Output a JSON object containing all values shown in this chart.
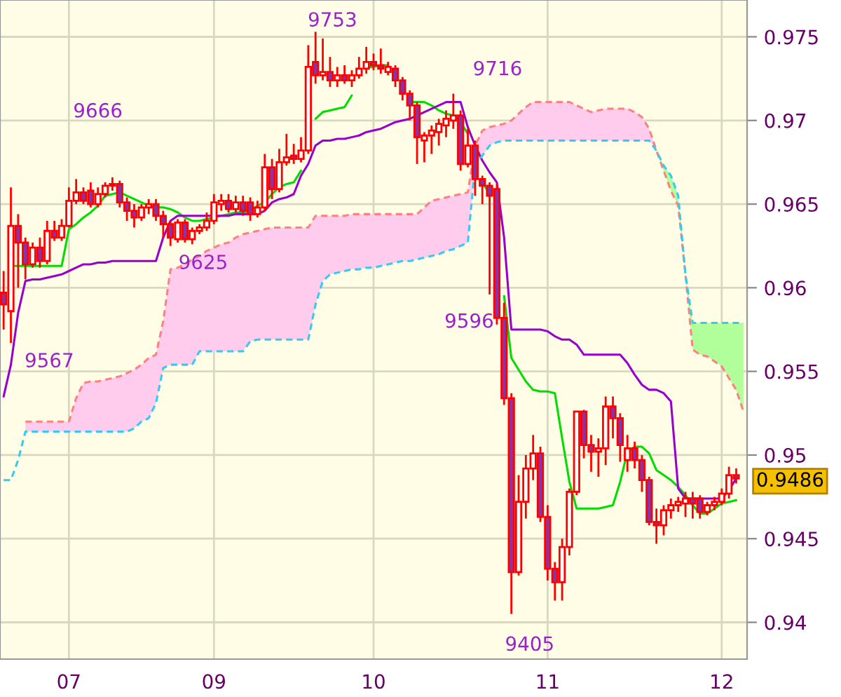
{
  "chart_data": {
    "type": "candlestick",
    "categories": [
      null,
      null,
      null,
      null,
      null,
      null,
      null,
      null,
      null,
      "07",
      null,
      null,
      null,
      null,
      null,
      null,
      null,
      null,
      null,
      null,
      null,
      null,
      null,
      null,
      null,
      null,
      null,
      null,
      null,
      "09",
      null,
      null,
      null,
      null,
      null,
      null,
      null,
      null,
      null,
      null,
      null,
      null,
      null,
      null,
      null,
      null,
      null,
      null,
      null,
      null,
      null,
      "10",
      null,
      null,
      null,
      null,
      null,
      null,
      null,
      null,
      null,
      null,
      null,
      null,
      null,
      null,
      null,
      null,
      null,
      null,
      null,
      null,
      null,
      null,
      null,
      "11",
      null,
      null,
      null,
      null,
      null,
      null,
      null,
      null,
      null,
      null,
      null,
      null,
      null,
      null,
      null,
      null,
      null,
      null,
      null,
      null,
      null,
      null,
      null,
      "12",
      null,
      null,
      null
    ],
    "ylim": [
      0.9378,
      0.9772
    ],
    "yticks": [
      0.94,
      0.945,
      0.95,
      0.955,
      0.96,
      0.965,
      0.97,
      0.975
    ],
    "grid": true,
    "annotations": [
      "9753",
      "9716",
      "9666",
      "9625",
      "9567",
      "9596",
      "9405",
      "0.9486"
    ],
    "series": [
      {
        "color": "#ff0000",
        "colors": [
          "#8833aa",
          "#ffffff",
          "#8833aa",
          "#8833aa",
          "#ffffff",
          "#8833aa",
          "#ffffff",
          "#8833aa",
          "#ffffff",
          "#ffffff",
          "#ffffff",
          "#8833aa",
          "#8833aa",
          "#ffffff",
          "#ffffff",
          "#ffffff",
          "#8833aa",
          "#8833aa",
          "#8833aa",
          "#ffffff",
          "#ffffff",
          "#8833aa",
          "#8833aa",
          "#8833aa",
          "#ffffff",
          "#8833aa",
          "#ffffff",
          "#ffffff",
          "#ffffff",
          "#ffffff",
          "#ffffff",
          "#8833aa",
          "#ffffff",
          "#8833aa",
          "#8833aa",
          "#ffffff",
          "#ffffff",
          "#8833aa",
          "#ffffff",
          "#ffffff",
          "#8833aa",
          "#ffffff",
          "#ffffff",
          "#8833aa",
          "#ffffff",
          "#8833aa",
          "#ffffff",
          "#8833aa",
          "#ffffff",
          "#ffffff",
          "#ffffff",
          "#8833aa",
          "#8833aa",
          "#ffffff",
          "#8833aa",
          "#8833aa",
          "#8833aa",
          "#8833aa",
          "#ffffff",
          "#ffffff",
          "#ffffff",
          "#ffffff",
          "#ffffff",
          "#8833aa",
          "#ffffff",
          "#8833aa",
          "#8833aa",
          "#8833aa",
          "#8833aa",
          "#8833aa",
          "#8833aa",
          "#ffffff",
          "#ffffff",
          "#ffffff",
          "#8833aa",
          "#8833aa",
          "#8833aa",
          "#ffffff",
          "#ffffff",
          "#ffffff",
          "#8833aa",
          "#8833aa",
          "#ffffff",
          "#ffffff",
          "#8833aa",
          "#8833aa",
          "#ffffff",
          "#8833aa",
          "#8833aa",
          "#8833aa",
          "#8833aa",
          "#ffffff",
          "#ffffff",
          "#ffffff",
          "#ffffff",
          "#8833aa",
          "#8833aa",
          "#ffffff",
          "#ffffff",
          "#ffffff",
          "#ffffff",
          "#8833aa",
          null
        ],
        "ohlc": [
          [
            0.9597,
            0.961,
            0.9575,
            0.959
          ],
          [
            0.9586,
            0.966,
            0.9567,
            0.9637
          ],
          [
            0.9637,
            0.9644,
            0.96,
            0.9627
          ],
          [
            0.9627,
            0.963,
            0.9605,
            0.9614
          ],
          [
            0.9614,
            0.9627,
            0.9612,
            0.9624
          ],
          [
            0.9624,
            0.963,
            0.9612,
            0.9616
          ],
          [
            0.9616,
            0.964,
            0.9614,
            0.9634
          ],
          [
            0.9634,
            0.964,
            0.9628,
            0.963
          ],
          [
            0.963,
            0.9641,
            0.9628,
            0.9637
          ],
          [
            0.9637,
            0.966,
            0.9636,
            0.9652
          ],
          [
            0.9652,
            0.9665,
            0.965,
            0.9657
          ],
          [
            0.9657,
            0.966,
            0.965,
            0.9652
          ],
          [
            0.9658,
            0.9663,
            0.9648,
            0.965
          ],
          [
            0.965,
            0.966,
            0.9648,
            0.9656
          ],
          [
            0.9656,
            0.9663,
            0.9654,
            0.9661
          ],
          [
            0.9661,
            0.9666,
            0.9658,
            0.9662
          ],
          [
            0.9662,
            0.9664,
            0.9648,
            0.9651
          ],
          [
            0.9651,
            0.9654,
            0.964,
            0.9646
          ],
          [
            0.9646,
            0.965,
            0.9636,
            0.9642
          ],
          [
            0.9642,
            0.965,
            0.964,
            0.9648
          ],
          [
            0.9648,
            0.9653,
            0.9644,
            0.965
          ],
          [
            0.965,
            0.9653,
            0.964,
            0.9643
          ],
          [
            0.9643,
            0.9646,
            0.963,
            0.9638
          ],
          [
            0.9638,
            0.964,
            0.9625,
            0.963
          ],
          [
            0.9629,
            0.9641,
            0.9627,
            0.9639
          ],
          [
            0.9639,
            0.9641,
            0.9627,
            0.9629
          ],
          [
            0.9629,
            0.9636,
            0.9626,
            0.9634
          ],
          [
            0.9634,
            0.9638,
            0.9632,
            0.9636
          ],
          [
            0.9636,
            0.9645,
            0.9634,
            0.964
          ],
          [
            0.964,
            0.9656,
            0.9638,
            0.9651
          ],
          [
            0.965,
            0.9656,
            0.9646,
            0.9652
          ],
          [
            0.9652,
            0.9656,
            0.9645,
            0.9647
          ],
          [
            0.9647,
            0.9655,
            0.9645,
            0.9651
          ],
          [
            0.9651,
            0.9655,
            0.9643,
            0.9646
          ],
          [
            0.9651,
            0.9654,
            0.964,
            0.9644
          ],
          [
            0.9644,
            0.9652,
            0.9642,
            0.9648
          ],
          [
            0.9648,
            0.968,
            0.9646,
            0.9672
          ],
          [
            0.9672,
            0.9677,
            0.9653,
            0.9659
          ],
          [
            0.9659,
            0.9683,
            0.9657,
            0.9675
          ],
          [
            0.9675,
            0.9692,
            0.9673,
            0.9678
          ],
          [
            0.9679,
            0.9686,
            0.9674,
            0.9677
          ],
          [
            0.9677,
            0.969,
            0.9675,
            0.9682
          ],
          [
            0.9682,
            0.9745,
            0.968,
            0.9732
          ],
          [
            0.9735,
            0.9753,
            0.9722,
            0.9727
          ],
          [
            0.9727,
            0.9749,
            0.9724,
            0.9729
          ],
          [
            0.9729,
            0.9738,
            0.972,
            0.9724
          ],
          [
            0.9724,
            0.9732,
            0.972,
            0.9727
          ],
          [
            0.9727,
            0.9733,
            0.9722,
            0.9724
          ],
          [
            0.9724,
            0.973,
            0.972,
            0.9727
          ],
          [
            0.9727,
            0.9738,
            0.9725,
            0.9731
          ],
          [
            0.9731,
            0.9744,
            0.9728,
            0.9735
          ],
          [
            0.9735,
            0.974,
            0.973,
            0.9733
          ],
          [
            0.9733,
            0.9743,
            0.9728,
            0.9731
          ],
          [
            0.9729,
            0.9735,
            0.9727,
            0.9732
          ],
          [
            0.9731,
            0.9733,
            0.972,
            0.9724
          ],
          [
            0.9724,
            0.9726,
            0.9712,
            0.9716
          ],
          [
            0.9716,
            0.9718,
            0.97,
            0.9709
          ],
          [
            0.9709,
            0.9711,
            0.9674,
            0.969
          ],
          [
            0.9688,
            0.9693,
            0.9675,
            0.9691
          ],
          [
            0.9691,
            0.9697,
            0.968,
            0.9694
          ],
          [
            0.9693,
            0.9701,
            0.9685,
            0.9698
          ],
          [
            0.9697,
            0.9706,
            0.969,
            0.9701
          ],
          [
            0.97,
            0.9716,
            0.9695,
            0.9703
          ],
          [
            0.9703,
            0.9706,
            0.967,
            0.9674
          ],
          [
            0.9674,
            0.9695,
            0.9672,
            0.9685
          ],
          [
            0.9685,
            0.9688,
            0.9655,
            0.9665
          ],
          [
            0.9665,
            0.9667,
            0.965,
            0.9661
          ],
          [
            0.9661,
            0.9663,
            0.9596,
            0.9655
          ],
          [
            0.9659,
            0.9662,
            0.9578,
            0.9582
          ],
          [
            0.9582,
            0.9591,
            0.953,
            0.9534
          ],
          [
            0.9534,
            0.9537,
            0.9405,
            0.943
          ],
          [
            0.943,
            0.9488,
            0.9428,
            0.9472
          ],
          [
            0.9472,
            0.95,
            0.9462,
            0.9492
          ],
          [
            0.9492,
            0.9512,
            0.9485,
            0.9501
          ],
          [
            0.9501,
            0.9505,
            0.946,
            0.9463
          ],
          [
            0.9463,
            0.947,
            0.9425,
            0.9432
          ],
          [
            0.9432,
            0.9436,
            0.9413,
            0.9424
          ],
          [
            0.9424,
            0.945,
            0.9413,
            0.9445
          ],
          [
            0.9445,
            0.948,
            0.944,
            0.9478
          ],
          [
            0.9478,
            0.9526,
            0.9476,
            0.9526
          ],
          [
            0.9526,
            0.9527,
            0.9498,
            0.9506
          ],
          [
            0.9506,
            0.9512,
            0.949,
            0.9502
          ],
          [
            0.9502,
            0.951,
            0.9487,
            0.9504
          ],
          [
            0.9504,
            0.9535,
            0.9494,
            0.9529
          ],
          [
            0.9529,
            0.9535,
            0.951,
            0.9522
          ],
          [
            0.9522,
            0.9525,
            0.9496,
            0.9506
          ],
          [
            0.9497,
            0.9512,
            0.949,
            0.9504
          ],
          [
            0.9504,
            0.9508,
            0.9492,
            0.9497
          ],
          [
            0.9497,
            0.95,
            0.9478,
            0.9485
          ],
          [
            0.9485,
            0.9487,
            0.9458,
            0.946
          ],
          [
            0.946,
            0.9468,
            0.9447,
            0.9458
          ],
          [
            0.9458,
            0.947,
            0.9452,
            0.9467
          ],
          [
            0.9467,
            0.9474,
            0.9462,
            0.947
          ],
          [
            0.947,
            0.9475,
            0.9466,
            0.9472
          ],
          [
            0.9471,
            0.9478,
            0.9463,
            0.9474
          ],
          [
            0.9474,
            0.9478,
            0.9462,
            0.9471
          ],
          [
            0.9474,
            0.9476,
            0.9462,
            0.9466
          ],
          [
            0.9466,
            0.9472,
            0.9464,
            0.947
          ],
          [
            0.947,
            0.9475,
            0.9467,
            0.9472
          ],
          [
            0.9472,
            0.948,
            0.947,
            0.9477
          ],
          [
            0.9477,
            0.9493,
            0.9474,
            0.9488
          ],
          [
            0.9488,
            0.9492,
            0.9483,
            0.9486
          ],
          null
        ]
      },
      {
        "type": "line",
        "color": "#00dd00",
        "values": [
          null,
          0.9613,
          0.9613,
          0.9613,
          0.9613,
          0.9613,
          0.9613,
          0.9613,
          0.9613,
          0.9635,
          0.9638,
          0.9642,
          0.9645,
          0.9649,
          0.9655,
          0.9656,
          0.9657,
          0.9655,
          0.9653,
          0.9651,
          0.9649,
          0.9648,
          0.9648,
          0.9647,
          0.9645,
          0.9642,
          0.964,
          0.964,
          0.9641,
          0.9642,
          0.9643,
          0.9644,
          0.9645,
          0.9645,
          0.9646,
          0.9649,
          0.9651,
          0.9656,
          0.966,
          0.9662,
          0.9663,
          0.967,
          null,
          0.9701,
          0.9705,
          0.9706,
          0.9707,
          0.9708,
          0.9715,
          null,
          0.9732,
          0.9732,
          0.9733,
          0.9733,
          null,
          null,
          0.9711,
          0.9711,
          0.9711,
          0.9709,
          0.9706,
          0.9704,
          0.9703,
          0.9699,
          0.9692,
          null,
          0.9663,
          0.9656,
          null,
          0.9595,
          0.9558,
          0.9551,
          0.9544,
          0.9539,
          0.9538,
          0.9538,
          0.9537,
          0.951,
          0.9484,
          0.9468,
          0.9468,
          0.9468,
          0.9468,
          0.9469,
          0.947,
          0.9484,
          0.9502,
          0.9505,
          0.9505,
          0.9501,
          0.9491,
          0.9488,
          0.9485,
          0.9481,
          0.9476,
          0.947,
          0.9465,
          0.9465,
          0.9468,
          0.9471,
          0.9472,
          0.9473,
          null
        ]
      },
      {
        "type": "line",
        "color": "#9900cc",
        "values": [
          0.9535,
          0.9554,
          0.9585,
          0.9604,
          0.9605,
          0.9605,
          0.9606,
          0.9607,
          0.9608,
          0.961,
          0.9612,
          0.9614,
          0.9614,
          0.9615,
          0.9615,
          0.9616,
          0.9616,
          0.9616,
          0.9616,
          0.9616,
          0.9616,
          0.9616,
          0.963,
          0.964,
          0.9643,
          0.9643,
          0.9643,
          0.9643,
          0.9643,
          0.9643,
          0.9643,
          0.9643,
          0.9644,
          0.9644,
          0.9644,
          0.9644,
          0.9646,
          0.9651,
          0.9653,
          0.9654,
          0.9656,
          0.9667,
          0.9674,
          0.9685,
          0.9688,
          0.9688,
          0.9689,
          0.9689,
          0.969,
          0.9691,
          0.9693,
          0.9694,
          0.9695,
          0.9697,
          0.9699,
          0.97,
          0.9701,
          0.9703,
          0.9705,
          0.9707,
          0.9709,
          0.9711,
          0.9711,
          0.9711,
          0.9696,
          0.9685,
          0.9676,
          0.9669,
          0.9663,
          0.963,
          0.9575,
          0.9575,
          0.9575,
          0.9575,
          0.9575,
          0.9574,
          0.9571,
          0.9569,
          0.9569,
          0.9566,
          0.956,
          0.956,
          0.956,
          0.956,
          0.956,
          0.956,
          0.9555,
          0.9548,
          0.9542,
          0.9539,
          0.9539,
          0.9537,
          0.9532,
          0.948,
          0.9474,
          0.9474,
          0.9474,
          0.9474,
          0.9474,
          0.9474,
          0.9479,
          0.9486,
          null
        ]
      },
      {
        "type": "line",
        "color": "#ff8080",
        "line_style": "dashed",
        "values": [
          null,
          null,
          null,
          0.952,
          0.952,
          0.952,
          0.952,
          0.952,
          0.952,
          0.952,
          0.9534,
          0.9543,
          0.9544,
          0.9544,
          0.9545,
          0.9546,
          0.9547,
          0.9549,
          0.9551,
          0.9554,
          0.9558,
          0.956,
          0.958,
          0.9611,
          0.9612,
          0.9614,
          0.9617,
          0.9619,
          0.9622,
          0.9624,
          0.9626,
          0.9627,
          0.963,
          0.9632,
          0.9633,
          0.9634,
          0.9635,
          0.9636,
          0.9636,
          0.9636,
          0.9636,
          0.9636,
          0.9636,
          0.9643,
          0.9643,
          0.9643,
          0.9643,
          0.9643,
          0.9644,
          0.9644,
          0.9644,
          0.9644,
          0.9644,
          0.9644,
          0.9644,
          0.9644,
          0.9644,
          0.9644,
          0.9648,
          0.9652,
          0.9653,
          0.9654,
          0.9655,
          0.9656,
          0.9657,
          0.9685,
          0.9694,
          0.9696,
          0.9697,
          0.9698,
          0.97,
          0.9704,
          0.9708,
          0.9711,
          0.9711,
          0.9711,
          0.9711,
          0.9711,
          0.9711,
          0.9709,
          0.9707,
          0.9705,
          0.9706,
          0.9707,
          0.9707,
          0.9707,
          0.9707,
          0.9705,
          0.9702,
          0.9695,
          0.9682,
          0.967,
          0.9658,
          0.9649,
          0.9608,
          0.9563,
          0.956,
          0.9559,
          0.9556,
          0.9553,
          0.9546,
          0.9539,
          0.9526
        ]
      },
      {
        "type": "line",
        "color": "#33ccee",
        "line_style": "dashed",
        "values": [
          0.9485,
          0.9485,
          0.9497,
          0.9514,
          0.9514,
          0.9514,
          0.9514,
          0.9514,
          0.9514,
          0.9514,
          0.9514,
          0.9514,
          0.9514,
          0.9514,
          0.9514,
          0.9514,
          0.9514,
          0.9514,
          0.9516,
          0.952,
          0.9522,
          0.9531,
          0.9552,
          0.9554,
          0.9554,
          0.9554,
          0.9554,
          0.9562,
          0.9562,
          0.9562,
          0.9562,
          0.9562,
          0.9562,
          0.9562,
          0.9568,
          0.9569,
          0.9569,
          0.9569,
          0.9569,
          0.9569,
          0.9569,
          0.9569,
          0.9569,
          0.959,
          0.9604,
          0.9608,
          0.9609,
          0.961,
          0.9611,
          0.9611,
          0.9612,
          0.9612,
          0.9613,
          0.9614,
          0.9615,
          0.9616,
          0.9616,
          0.9617,
          0.9618,
          0.9619,
          0.962,
          0.9622,
          0.9623,
          0.9625,
          0.9627,
          0.9673,
          0.9679,
          0.9685,
          0.9687,
          0.9688,
          0.9688,
          0.9688,
          0.9688,
          0.9688,
          0.9688,
          0.9688,
          0.9688,
          0.9688,
          0.9688,
          0.9688,
          0.9688,
          0.9688,
          0.9688,
          0.9688,
          0.9688,
          0.9688,
          0.9688,
          0.9688,
          0.9688,
          0.9688,
          0.9682,
          0.9673,
          0.9667,
          0.9655,
          0.9608,
          0.9579,
          0.9579,
          0.9579,
          0.9579,
          0.9579,
          0.9579,
          0.9579,
          0.9579
        ]
      },
      {
        "type": "area",
        "color": "#ffccee",
        "values": [
          null,
          null,
          null,
          0.952,
          0.952,
          0.952,
          0.952,
          0.952,
          0.952,
          0.952,
          0.9534,
          0.9543,
          0.9544,
          0.9544,
          0.9545,
          0.9546,
          0.9547,
          0.9549,
          0.9551,
          0.9554,
          0.9558,
          0.956,
          0.958,
          0.9611,
          0.9612,
          0.9614,
          0.9617,
          0.9619,
          0.9622,
          0.9624,
          0.9626,
          0.9627,
          0.963,
          0.9632,
          0.9633,
          0.9634,
          0.9635,
          0.9636,
          0.9636,
          0.9636,
          0.9636,
          0.9636,
          0.9636,
          0.9643,
          0.9643,
          0.9643,
          0.9643,
          0.9643,
          0.9644,
          0.9644,
          0.9644,
          0.9644,
          0.9644,
          0.9644,
          0.9644,
          0.9644,
          0.9644,
          0.9644,
          0.9648,
          0.9652,
          0.9653,
          0.9654,
          0.9655,
          0.9656,
          0.9657,
          0.9685,
          0.9694,
          0.9696,
          0.9697,
          0.9698,
          0.97,
          0.9704,
          0.9708,
          0.9711,
          0.9711,
          0.9711,
          0.9711,
          0.9711,
          0.9711,
          0.9709,
          0.9707,
          0.9705,
          0.9706,
          0.9707,
          0.9707,
          0.9707,
          0.9707,
          0.9705,
          0.9702,
          0.9695,
          0.9682,
          null,
          null,
          null,
          null,
          null,
          null,
          null,
          null,
          null,
          null,
          null,
          null
        ]
      },
      {
        "type": "area",
        "color": "#b0ff9a",
        "values": [
          null,
          null,
          null,
          null,
          null,
          null,
          null,
          null,
          null,
          null,
          null,
          null,
          null,
          null,
          null,
          null,
          null,
          null,
          null,
          null,
          null,
          null,
          null,
          null,
          null,
          null,
          null,
          null,
          null,
          null,
          null,
          null,
          null,
          null,
          null,
          null,
          null,
          null,
          null,
          null,
          null,
          null,
          null,
          null,
          null,
          null,
          null,
          null,
          null,
          null,
          null,
          null,
          null,
          null,
          null,
          null,
          null,
          null,
          null,
          null,
          null,
          null,
          null,
          null,
          null,
          null,
          null,
          null,
          null,
          null,
          null,
          null,
          null,
          null,
          null,
          null,
          null,
          null,
          null,
          null,
          null,
          null,
          null,
          null,
          null,
          null,
          null,
          null,
          null,
          null,
          0.9682,
          0.9673,
          0.9667,
          0.9655,
          0.9608,
          0.9579,
          0.9579,
          0.9579,
          0.9579,
          0.9579,
          0.9579,
          0.9579,
          0.9579
        ]
      }
    ]
  }
}
